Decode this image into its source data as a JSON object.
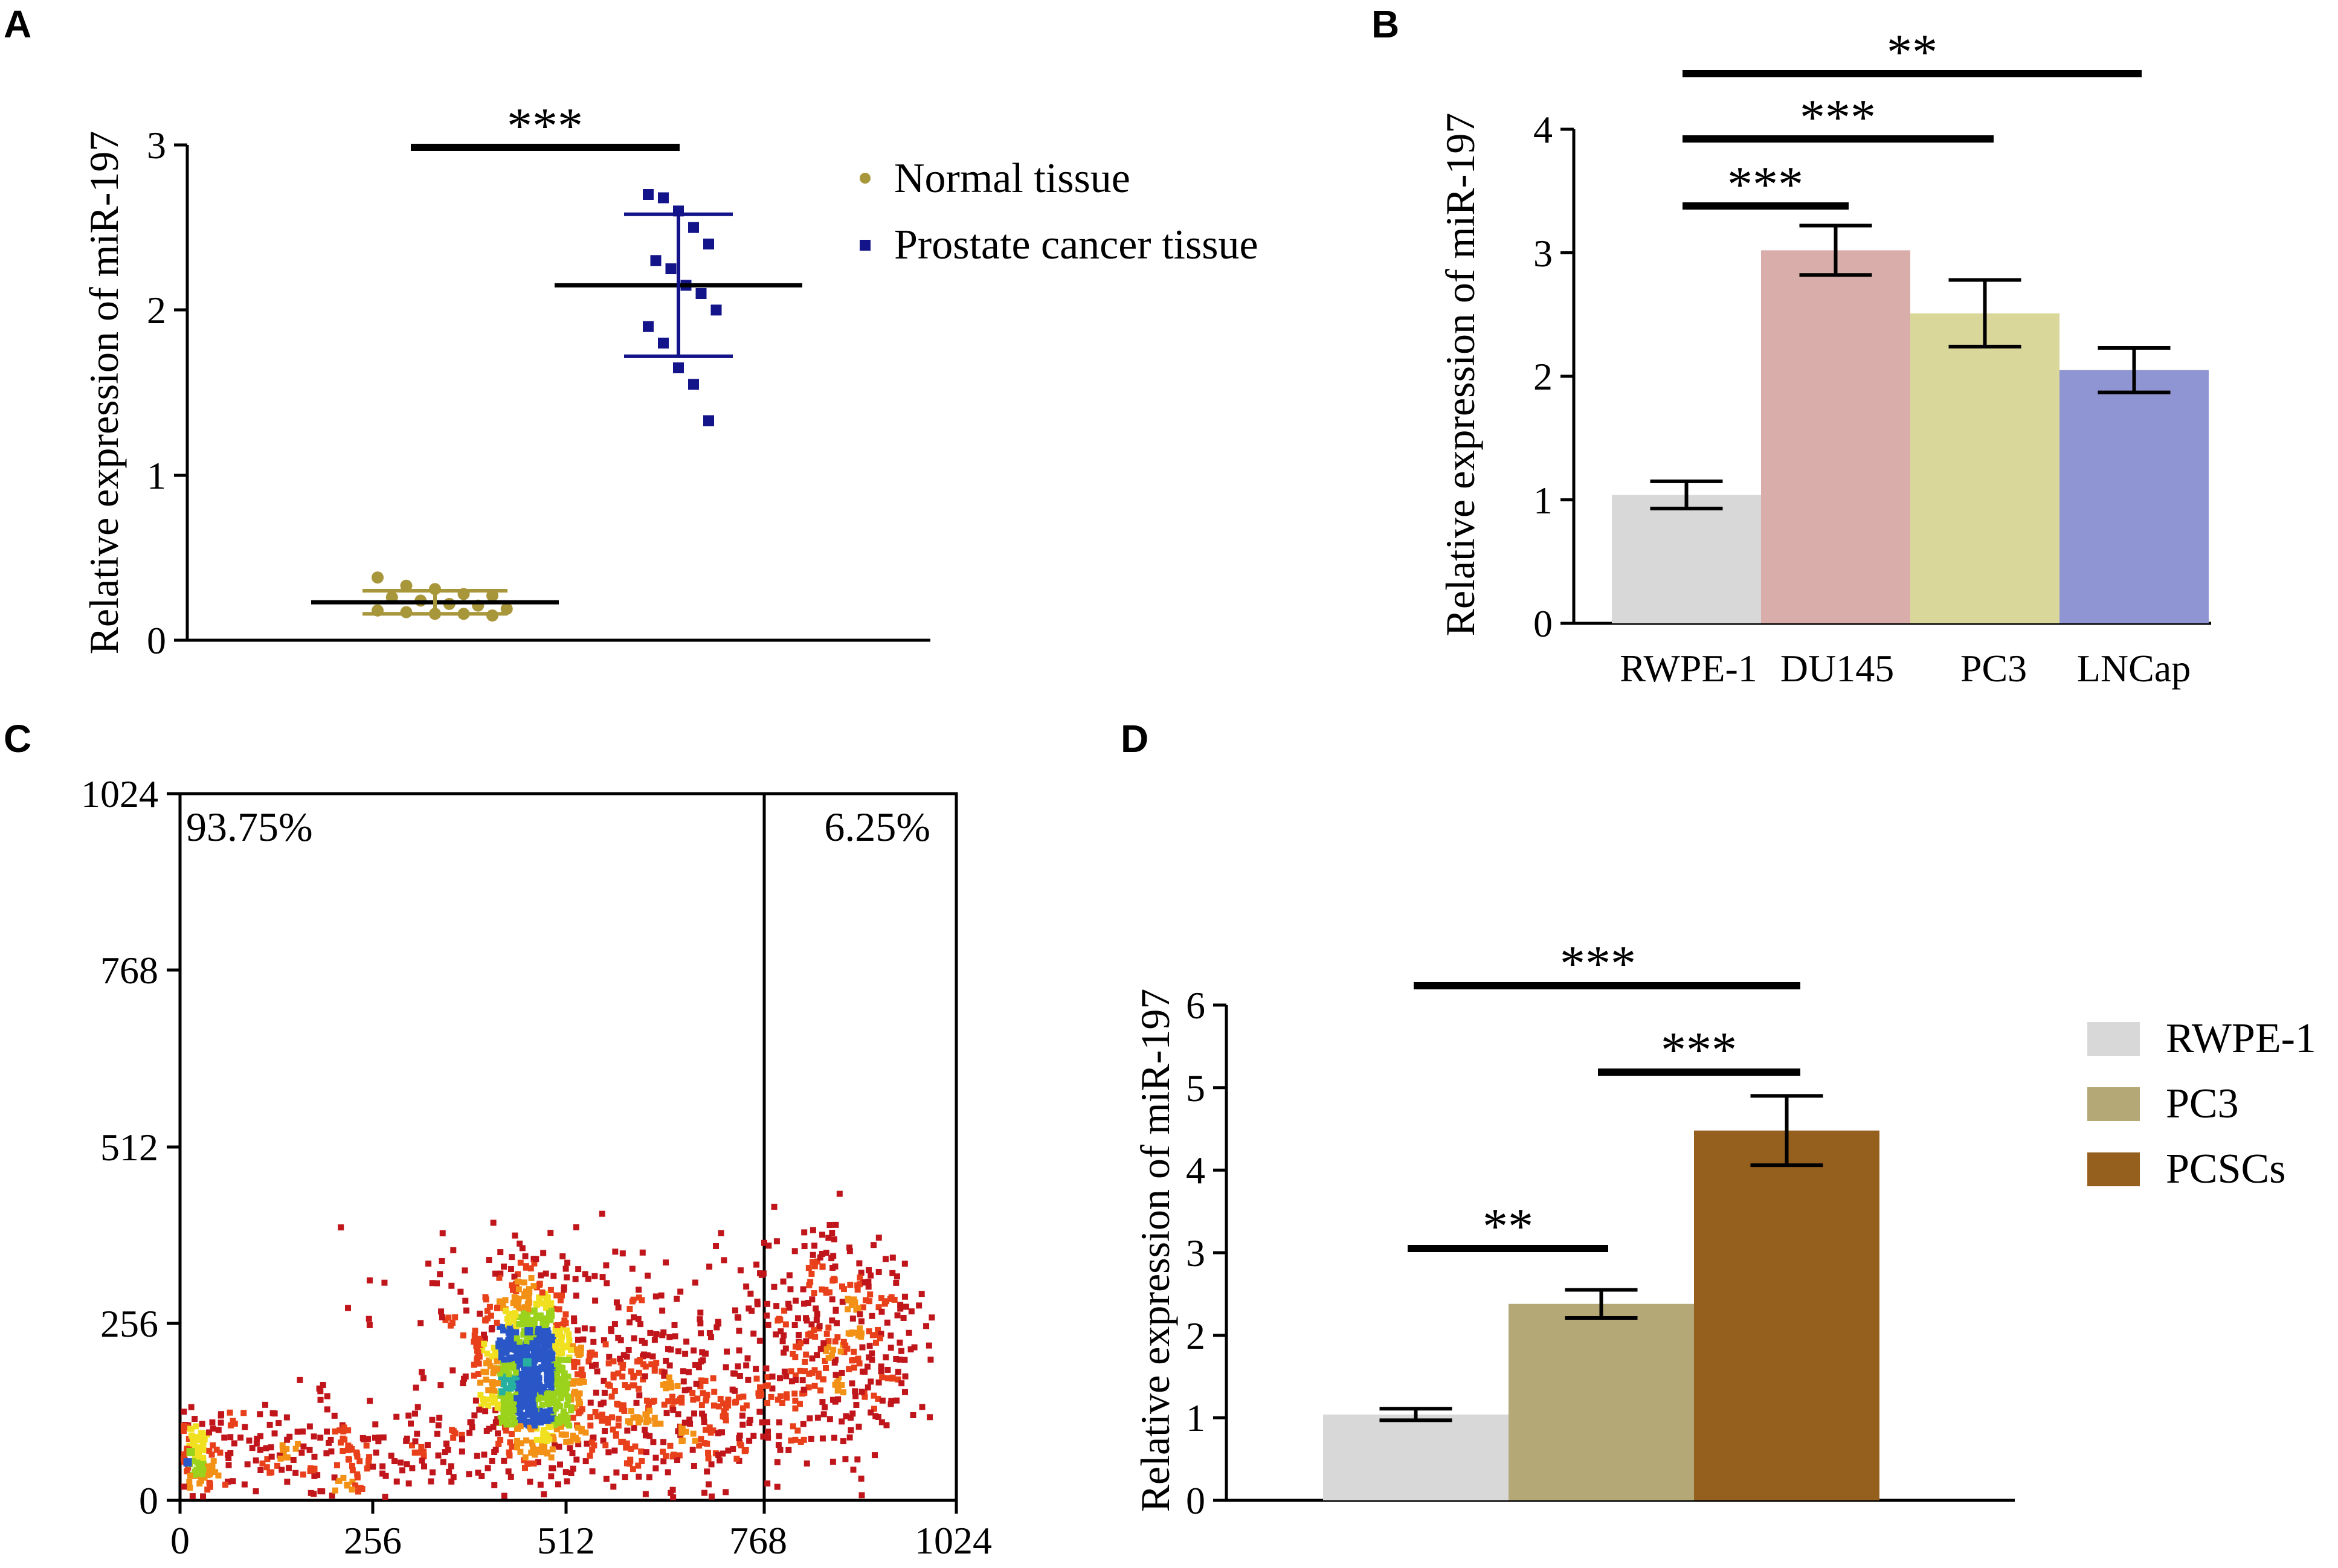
{
  "chart_data": [
    {
      "panel": "A",
      "type": "scatter",
      "ylabel": "Relative expression of miR-197",
      "ylim": [
        0,
        3
      ],
      "yticks": [
        "0",
        "1",
        "2",
        "3"
      ],
      "legend": [
        "Normal tissue",
        "Prostate cancer tissue"
      ],
      "significance": [
        "***"
      ],
      "series": [
        {
          "name": "Normal tissue",
          "color": "#a8963a",
          "mean": 0.23,
          "sd": 0.07,
          "values": [
            0.38,
            0.33,
            0.31,
            0.28,
            0.27,
            0.26,
            0.24,
            0.22,
            0.21,
            0.19,
            0.18,
            0.17,
            0.16,
            0.16,
            0.15
          ]
        },
        {
          "name": "Prostate cancer tissue",
          "color": "#14148a",
          "mean": 2.15,
          "sd": 0.43,
          "values": [
            2.7,
            2.68,
            2.6,
            2.5,
            2.4,
            2.3,
            2.25,
            2.15,
            2.1,
            2.0,
            1.9,
            1.8,
            1.65,
            1.55,
            1.33
          ]
        }
      ]
    },
    {
      "panel": "B",
      "type": "bar",
      "categories": [
        "RWPE-1",
        "DU145",
        "PC3",
        "LNCap"
      ],
      "values": [
        1.04,
        3.02,
        2.51,
        2.05
      ],
      "errors": [
        0.11,
        0.2,
        0.27,
        0.18
      ],
      "colors": [
        "#d8d8d8",
        "#d9aeaa",
        "#d9d89a",
        "#8e95d2"
      ],
      "ylabel": "Relative expression of miR-197",
      "ylim": [
        0,
        4
      ],
      "yticks": [
        "0",
        "1",
        "2",
        "3",
        "4"
      ],
      "significance": [
        "***",
        "***",
        "**"
      ]
    },
    {
      "panel": "C",
      "type": "scatter",
      "xlim": [
        0,
        1024
      ],
      "ylim": [
        0,
        1024
      ],
      "xticks": [
        "0",
        "256",
        "512",
        "768",
        "1024"
      ],
      "yticks": [
        "0",
        "256",
        "512",
        "768",
        "1024"
      ],
      "gate_x": 768,
      "regions": [
        "93.75%",
        "6.25%"
      ]
    },
    {
      "panel": "D",
      "type": "bar",
      "categories": [
        "RWPE-1",
        "PC3",
        "PCSCs"
      ],
      "values": [
        1.04,
        2.38,
        4.48
      ],
      "errors": [
        0.07,
        0.17,
        0.42
      ],
      "colors": [
        "#d8d8d8",
        "#b3a876",
        "#955f1e"
      ],
      "ylabel": "Relative expression of miR-197",
      "ylim": [
        0,
        6
      ],
      "yticks": [
        "0",
        "1",
        "2",
        "3",
        "4",
        "5",
        "6"
      ],
      "legend": [
        "RWPE-1",
        "PC3",
        "PCSCs"
      ],
      "significance": [
        "**",
        "***",
        "***"
      ]
    }
  ],
  "panel_labels": [
    "A",
    "B",
    "C",
    "D"
  ]
}
